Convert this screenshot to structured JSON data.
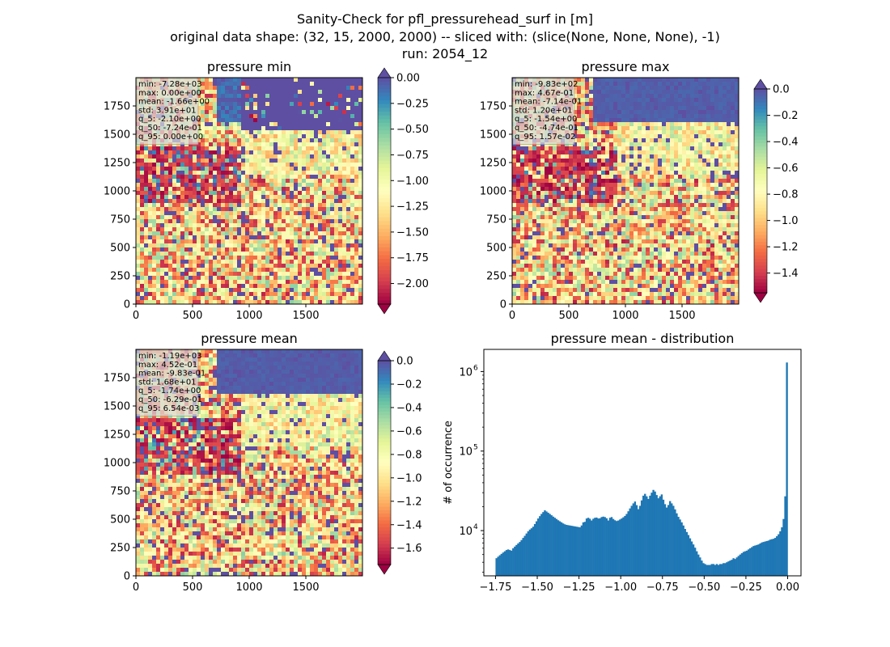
{
  "suptitle": {
    "line1": "Sanity-Check for pfl_pressurehead_surf in [m]",
    "line2": "original data shape: (32, 15, 2000, 2000) -- sliced with: (slice(None, None, None), -1)",
    "line3": "run: 2054_12"
  },
  "chart_data": [
    {
      "type": "heatmap",
      "title": "pressure min",
      "colormap": "Spectral",
      "x_ticks": [
        "0",
        "500",
        "1000",
        "1500"
      ],
      "y_ticks": [
        "0",
        "250",
        "500",
        "750",
        "1000",
        "1250",
        "1500",
        "1750"
      ],
      "xlim": [
        0,
        2000
      ],
      "ylim": [
        0,
        2000
      ],
      "colorbar": {
        "range": [
          -2.2,
          0.0
        ],
        "ticks": [
          "0.00",
          "−0.25",
          "−0.50",
          "−0.75",
          "−1.00",
          "−1.25",
          "−1.50",
          "−1.75",
          "−2.00"
        ],
        "tick_values": [
          0,
          -0.25,
          -0.5,
          -0.75,
          -1.0,
          -1.25,
          -1.5,
          -1.75,
          -2.0
        ],
        "extend": "both"
      },
      "stats": [
        "min: -7.28e+03",
        "max: 0.00e+00",
        "mean: -1.66e+00",
        "std: 3.91e+01",
        "q_5: -2.10e+00",
        "q_50: -7.24e-01",
        "q_95: 0.00e+00"
      ]
    },
    {
      "type": "heatmap",
      "title": "pressure max",
      "colormap": "Spectral",
      "x_ticks": [
        "0",
        "500",
        "1000",
        "1500"
      ],
      "y_ticks": [
        "0",
        "250",
        "500",
        "750",
        "1000",
        "1250",
        "1500",
        "1750"
      ],
      "xlim": [
        0,
        2000
      ],
      "ylim": [
        0,
        2000
      ],
      "colorbar": {
        "range": [
          -1.55,
          0.0
        ],
        "ticks": [
          "0.0",
          "−0.2",
          "−0.4",
          "−0.6",
          "−0.8",
          "−1.0",
          "−1.2",
          "−1.4"
        ],
        "tick_values": [
          0,
          -0.2,
          -0.4,
          -0.6,
          -0.8,
          -1.0,
          -1.2,
          -1.4
        ],
        "extend": "both"
      },
      "stats": [
        "min: -9.83e+02",
        "max: 4.67e-01",
        "mean: -7.14e-01",
        "std: 1.20e+01",
        "q_5: -1.54e+00",
        "q_50: -4.74e-01",
        "q_95: 1.57e-02"
      ]
    },
    {
      "type": "heatmap",
      "title": "pressure mean",
      "colormap": "Spectral",
      "x_ticks": [
        "0",
        "500",
        "1000",
        "1500"
      ],
      "y_ticks": [
        "0",
        "250",
        "500",
        "750",
        "1000",
        "1250",
        "1500",
        "1750"
      ],
      "xlim": [
        0,
        2000
      ],
      "ylim": [
        0,
        2000
      ],
      "colorbar": {
        "range": [
          -1.74,
          0.0
        ],
        "ticks": [
          "0.0",
          "−0.2",
          "−0.4",
          "−0.6",
          "−0.8",
          "−1.0",
          "−1.2",
          "−1.4",
          "−1.6"
        ],
        "tick_values": [
          0,
          -0.2,
          -0.4,
          -0.6,
          -0.8,
          -1.0,
          -1.2,
          -1.4,
          -1.6
        ],
        "extend": "both"
      },
      "stats": [
        "min: -1.19e+03",
        "max: 4.52e-01",
        "mean: -9.83e-01",
        "std: 1.68e+01",
        "q_5: -1.74e+00",
        "q_50: -6.29e-01",
        "q_95: 6.54e-03"
      ]
    },
    {
      "type": "bar",
      "title": "pressure mean - distribution",
      "ylabel": "# of occurrence",
      "xlabel": "",
      "yscale": "log",
      "color": "#1f77b4",
      "xlim": [
        -1.82,
        0.08
      ],
      "ylim": [
        2700,
        1900000
      ],
      "x_ticks": [
        "−1.75",
        "−1.50",
        "−1.25",
        "−1.00",
        "−0.75",
        "−0.50",
        "−0.25",
        "0.00"
      ],
      "x_tick_values": [
        -1.75,
        -1.5,
        -1.25,
        -1.0,
        -0.75,
        -0.5,
        -0.25,
        0.0
      ],
      "y_ticks": [
        "10",
        "10",
        "10"
      ],
      "y_tick_exponents": [
        "4",
        "5",
        "6"
      ],
      "y_tick_values": [
        10000,
        100000,
        1000000
      ],
      "bin_width": 0.01,
      "x": [
        -1.745,
        -1.735,
        -1.725,
        -1.715,
        -1.705,
        -1.695,
        -1.685,
        -1.675,
        -1.665,
        -1.655,
        -1.645,
        -1.635,
        -1.625,
        -1.615,
        -1.605,
        -1.595,
        -1.585,
        -1.575,
        -1.565,
        -1.555,
        -1.545,
        -1.535,
        -1.525,
        -1.515,
        -1.505,
        -1.495,
        -1.485,
        -1.475,
        -1.465,
        -1.455,
        -1.445,
        -1.435,
        -1.425,
        -1.415,
        -1.405,
        -1.395,
        -1.385,
        -1.375,
        -1.365,
        -1.355,
        -1.345,
        -1.335,
        -1.325,
        -1.315,
        -1.305,
        -1.295,
        -1.285,
        -1.275,
        -1.265,
        -1.255,
        -1.245,
        -1.235,
        -1.225,
        -1.215,
        -1.205,
        -1.195,
        -1.185,
        -1.175,
        -1.165,
        -1.155,
        -1.145,
        -1.135,
        -1.125,
        -1.115,
        -1.105,
        -1.095,
        -1.085,
        -1.075,
        -1.065,
        -1.055,
        -1.045,
        -1.035,
        -1.025,
        -1.015,
        -1.005,
        -0.995,
        -0.985,
        -0.975,
        -0.965,
        -0.955,
        -0.945,
        -0.935,
        -0.925,
        -0.915,
        -0.905,
        -0.895,
        -0.885,
        -0.875,
        -0.865,
        -0.855,
        -0.845,
        -0.835,
        -0.825,
        -0.815,
        -0.805,
        -0.795,
        -0.785,
        -0.775,
        -0.765,
        -0.755,
        -0.745,
        -0.735,
        -0.725,
        -0.715,
        -0.705,
        -0.695,
        -0.685,
        -0.675,
        -0.665,
        -0.655,
        -0.645,
        -0.635,
        -0.625,
        -0.615,
        -0.605,
        -0.595,
        -0.585,
        -0.575,
        -0.565,
        -0.555,
        -0.545,
        -0.535,
        -0.525,
        -0.515,
        -0.505,
        -0.495,
        -0.485,
        -0.475,
        -0.465,
        -0.455,
        -0.445,
        -0.435,
        -0.425,
        -0.415,
        -0.405,
        -0.395,
        -0.385,
        -0.375,
        -0.365,
        -0.355,
        -0.345,
        -0.335,
        -0.325,
        -0.315,
        -0.305,
        -0.295,
        -0.285,
        -0.275,
        -0.265,
        -0.255,
        -0.245,
        -0.235,
        -0.225,
        -0.215,
        -0.205,
        -0.195,
        -0.185,
        -0.175,
        -0.165,
        -0.155,
        -0.145,
        -0.135,
        -0.125,
        -0.115,
        -0.105,
        -0.095,
        -0.085,
        -0.075,
        -0.065,
        -0.055,
        -0.045,
        -0.035,
        -0.025,
        -0.015,
        -0.005
      ],
      "values": [
        4500,
        4700,
        4900,
        5100,
        5300,
        5500,
        5700,
        5800,
        5700,
        5600,
        6000,
        6300,
        6600,
        6900,
        7200,
        7600,
        8100,
        8600,
        9200,
        9800,
        10300,
        10700,
        11200,
        12100,
        13100,
        14200,
        15200,
        16200,
        17100,
        18000,
        17400,
        16800,
        16200,
        15600,
        15000,
        14500,
        14000,
        13500,
        13100,
        12700,
        12300,
        12000,
        11800,
        11700,
        11600,
        11500,
        11400,
        11300,
        11200,
        11100,
        11000,
        11600,
        12700,
        12900,
        14200,
        14500,
        14100,
        13400,
        14100,
        14500,
        14600,
        14200,
        14300,
        14800,
        15000,
        14800,
        14300,
        13400,
        14500,
        14800,
        14000,
        13500,
        13200,
        13400,
        13800,
        14200,
        14700,
        15300,
        16200,
        17500,
        19000,
        20500,
        22000,
        23200,
        20900,
        18600,
        20500,
        24000,
        27500,
        29000,
        27000,
        25000,
        27500,
        30000,
        32500,
        31000,
        28000,
        25500,
        27000,
        28500,
        24500,
        21500,
        19500,
        21000,
        23500,
        22000,
        20500,
        18500,
        16500,
        14900,
        13800,
        12700,
        11600,
        10500,
        9600,
        8800,
        8000,
        7300,
        6700,
        6100,
        5500,
        5000,
        4600,
        4200,
        3900,
        3800,
        3700,
        3700,
        3700,
        3800,
        3800,
        3700,
        3800,
        3700,
        3800,
        3800,
        3900,
        3900,
        4000,
        4100,
        4200,
        4300,
        4500,
        4400,
        4600,
        4800,
        5000,
        5200,
        5400,
        5500,
        5600,
        5800,
        6000,
        6200,
        6400,
        6500,
        6600,
        6700,
        6900,
        7100,
        7200,
        7300,
        7400,
        7500,
        7700,
        7800,
        7900,
        8100,
        8500,
        9000,
        9800,
        11000,
        14000,
        27000,
        1300000
      ]
    }
  ]
}
